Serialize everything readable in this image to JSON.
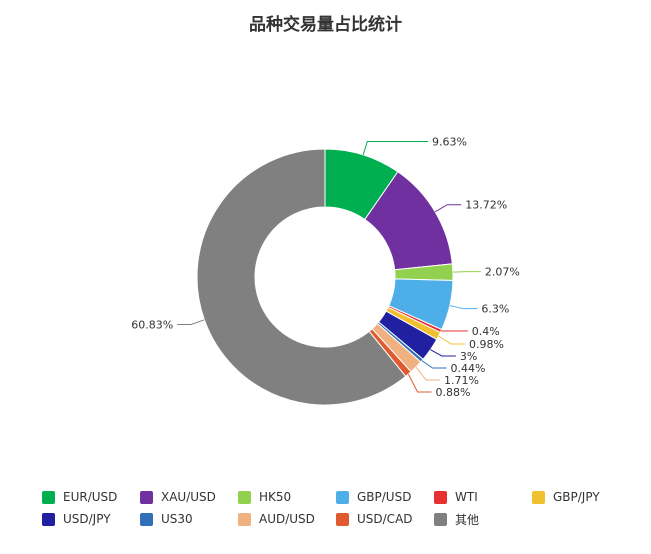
{
  "chart_data": {
    "type": "pie",
    "title": "品种交易量占比统计",
    "donut": true,
    "start_angle_deg": 90,
    "direction": "clockwise",
    "legend_placement": "bottom",
    "labels": [
      "EUR/USD",
      "XAU/USD",
      "HK50",
      "GBP/USD",
      "WTI",
      "GBP/JPY",
      "USD/JPY",
      "US30",
      "AUD/USD",
      "USD/CAD",
      "其他"
    ],
    "values": [
      9.63,
      13.72,
      2.07,
      6.3,
      0.4,
      0.98,
      3,
      0.44,
      1.71,
      0.88,
      60.83
    ],
    "value_labels": [
      "9.63%",
      "13.72%",
      "2.07%",
      "6.3%",
      "0.4%",
      "0.98%",
      "3%",
      "0.44%",
      "1.71%",
      "0.88%",
      "60.83%"
    ],
    "colors": [
      "#00b050",
      "#7030a0",
      "#92d050",
      "#4eaee8",
      "#e83030",
      "#f0c030",
      "#2020a0",
      "#3070b8",
      "#f0b080",
      "#e05a30",
      "#808080"
    ]
  }
}
